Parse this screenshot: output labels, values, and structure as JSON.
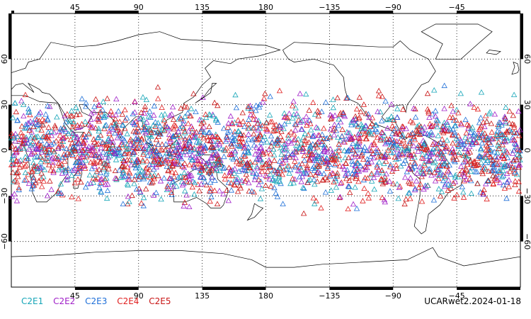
{
  "map": {
    "projection": "equirectangular",
    "center_longitude": 180,
    "lon_range": [
      0,
      360
    ],
    "lat_range": [
      -90,
      90
    ],
    "top_lon_labels": [
      "45",
      "90",
      "135",
      "180",
      "−135",
      "−90",
      "−45"
    ],
    "bottom_lon_labels": [
      "45",
      "90",
      "135",
      "180",
      "−135",
      "−90",
      "−45"
    ],
    "lat_labels": [
      "60",
      "30",
      "0",
      "−30",
      "−60"
    ],
    "grid": true,
    "coastline_color": "#000000"
  },
  "chart_data": {
    "type": "scatter",
    "marker": "open-triangle",
    "latitude_band": [
      -45,
      45
    ],
    "series": [
      {
        "name": "C2E1",
        "color": "#17a6b8"
      },
      {
        "name": "C2E2",
        "color": "#a020c8"
      },
      {
        "name": "C2E3",
        "color": "#1e6fd8"
      },
      {
        "name": "C2E4",
        "color": "#e02020"
      },
      {
        "name": "C2E5",
        "color": "#c81414"
      }
    ]
  },
  "footer": {
    "run_label": "UCARwet2.2024-01-18"
  }
}
